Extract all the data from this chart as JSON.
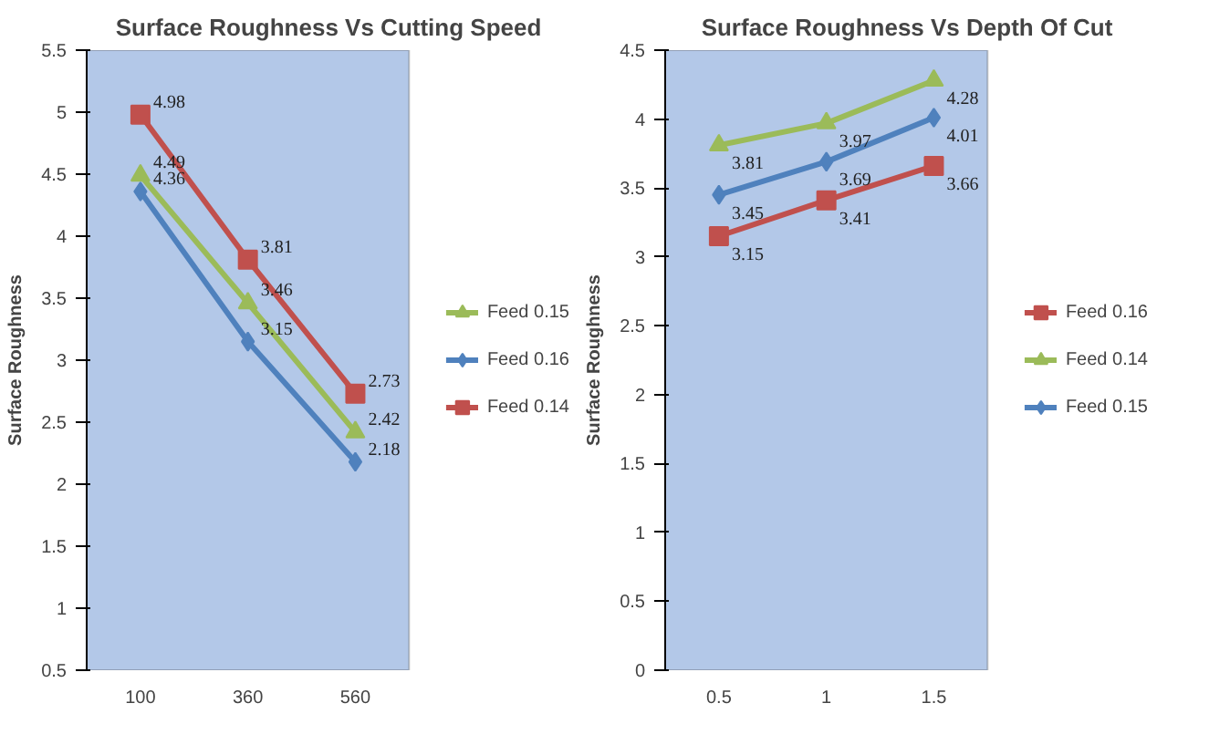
{
  "chart_data": [
    {
      "type": "line",
      "title": "Surface Roughness Vs Cutting Speed",
      "ylabel": "Surface Roughness",
      "categories": [
        "100",
        "360",
        "560"
      ],
      "ylim": [
        0.5,
        5.5
      ],
      "yticks": [
        0.5,
        1,
        1.5,
        2,
        2.5,
        3,
        3.5,
        4,
        4.5,
        5,
        5.5
      ],
      "grid": false,
      "legend": "right",
      "data_labels": true,
      "series": [
        {
          "name": "Feed 0.15",
          "color": "#9bbb59",
          "marker": "triangle",
          "values": [
            4.49,
            3.46,
            2.42
          ]
        },
        {
          "name": "Feed 0.16",
          "color": "#4f81bd",
          "marker": "diamond",
          "values": [
            4.36,
            3.15,
            2.18
          ]
        },
        {
          "name": "Feed 0.14",
          "color": "#c0504d",
          "marker": "square",
          "values": [
            4.98,
            3.81,
            2.73
          ]
        }
      ]
    },
    {
      "type": "line",
      "title": "Surface Roughness Vs Depth Of Cut",
      "ylabel": "Surface Roughness",
      "categories": [
        "0.5",
        "1",
        "1.5"
      ],
      "ylim": [
        0,
        4.5
      ],
      "yticks": [
        0,
        0.5,
        1,
        1.5,
        2,
        2.5,
        3,
        3.5,
        4,
        4.5
      ],
      "grid": false,
      "legend": "right",
      "data_labels": true,
      "series": [
        {
          "name": "Feed 0.16",
          "color": "#c0504d",
          "marker": "square",
          "values": [
            3.15,
            3.41,
            3.66
          ]
        },
        {
          "name": "Feed 0.14",
          "color": "#9bbb59",
          "marker": "triangle",
          "values": [
            3.81,
            3.97,
            4.28
          ]
        },
        {
          "name": "Feed 0.15",
          "color": "#4f81bd",
          "marker": "diamond",
          "values": [
            3.45,
            3.69,
            4.01
          ]
        }
      ]
    }
  ]
}
